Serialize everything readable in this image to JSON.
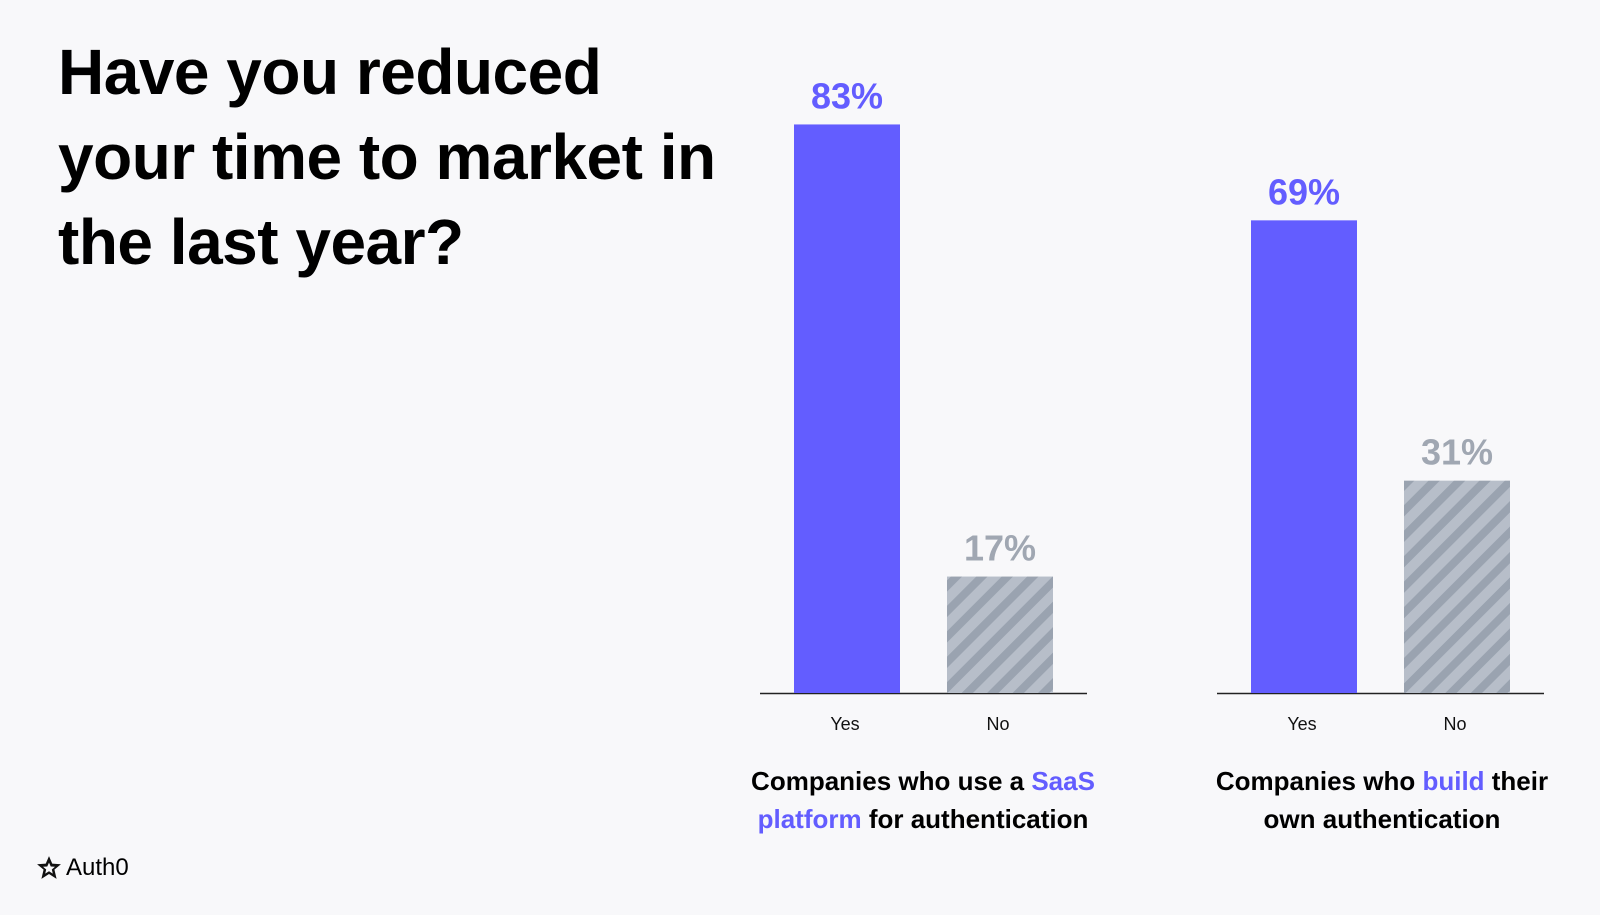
{
  "title": "Have you reduced your time to market in the last year?",
  "colors": {
    "yes": "#635dff",
    "no": "#b7bec9",
    "no_stripe": "#9aa3b0",
    "no_label": "#a0a7b2",
    "axis": "#222222"
  },
  "chart_data": {
    "type": "bar",
    "title": "Have you reduced your time to market in the last year?",
    "categories": [
      "Yes",
      "No"
    ],
    "ylim": [
      0,
      100
    ],
    "grid": false,
    "groups": [
      {
        "caption_before": "Companies who use a ",
        "caption_highlight": "SaaS platform",
        "caption_after": " for authentication",
        "values": [
          83,
          17
        ],
        "labels": [
          "83%",
          "17%"
        ]
      },
      {
        "caption_before": "Companies who ",
        "caption_highlight": "build",
        "caption_after": " their own authentication",
        "values": [
          69,
          31
        ],
        "labels": [
          "69%",
          "31%"
        ]
      }
    ]
  },
  "brand": {
    "name": "Auth0",
    "logo_icon": "auth0-star-icon"
  }
}
